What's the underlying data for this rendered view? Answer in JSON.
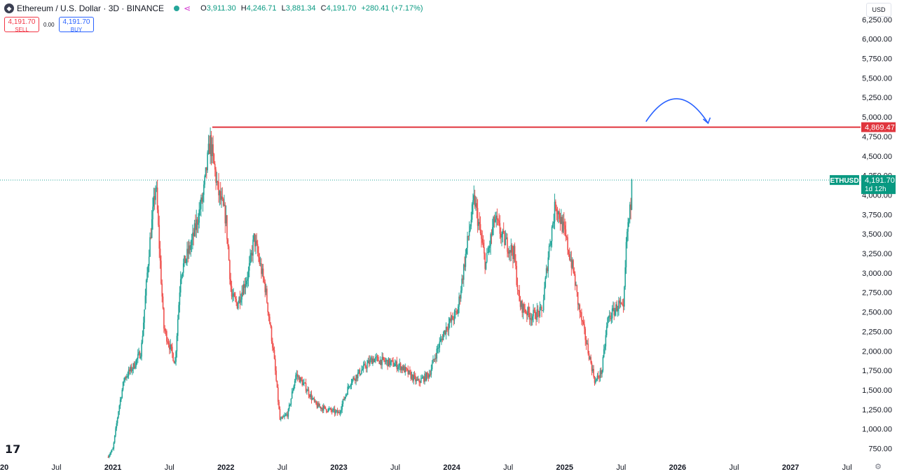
{
  "header": {
    "symbol": "Ethereum / U.S. Dollar · 3D · BINANCE",
    "open_label": "O",
    "open": "3,911.30",
    "high_label": "H",
    "high": "4,246.71",
    "low_label": "L",
    "low": "3,881.34",
    "close_label": "C",
    "close": "4,191.70",
    "change": "+280.41 (+7.17%)"
  },
  "trade": {
    "sell_price": "4,191.70",
    "sell_label": "SELL",
    "spread": "0.00",
    "buy_price": "4,191.70",
    "buy_label": "BUY"
  },
  "currency": "USD",
  "colors": {
    "up": "#26a69a",
    "down": "#ef5350",
    "resistance": "#e0353d",
    "accent": "#2962ff"
  },
  "chart_data": {
    "type": "candlestick",
    "symbol": "ETHUSD",
    "interval": "3D",
    "y_range": [
      620,
      6500
    ],
    "y_ticks": [
      750,
      1000,
      1250,
      1500,
      1750,
      2000,
      2250,
      2500,
      2750,
      3000,
      3250,
      3500,
      3750,
      4000,
      4250,
      4500,
      4750,
      5000,
      5250,
      5500,
      5750,
      6000,
      6250
    ],
    "x_labels": [
      {
        "label": "2020",
        "t": 2020.0
      },
      {
        "label": "Jul",
        "t": 2020.5
      },
      {
        "label": "2021",
        "t": 2021.0
      },
      {
        "label": "Jul",
        "t": 2021.5
      },
      {
        "label": "2022",
        "t": 2022.0
      },
      {
        "label": "Jul",
        "t": 2022.5
      },
      {
        "label": "2023",
        "t": 2023.0
      },
      {
        "label": "Jul",
        "t": 2023.5
      },
      {
        "label": "2024",
        "t": 2024.0
      },
      {
        "label": "Jul",
        "t": 2024.5
      },
      {
        "label": "2025",
        "t": 2025.0
      },
      {
        "label": "Jul",
        "t": 2025.5
      },
      {
        "label": "2026",
        "t": 2026.0
      },
      {
        "label": "Jul",
        "t": 2026.5
      },
      {
        "label": "2027",
        "t": 2027.0
      },
      {
        "label": "Jul",
        "t": 2027.5
      }
    ],
    "anchors": [
      [
        2020.95,
        640
      ],
      [
        2021.0,
        740
      ],
      [
        2021.05,
        1250
      ],
      [
        2021.1,
        1650
      ],
      [
        2021.18,
        1800
      ],
      [
        2021.25,
        2000
      ],
      [
        2021.32,
        3300
      ],
      [
        2021.38,
        4150
      ],
      [
        2021.45,
        2300
      ],
      [
        2021.55,
        1850
      ],
      [
        2021.6,
        3000
      ],
      [
        2021.7,
        3400
      ],
      [
        2021.8,
        4000
      ],
      [
        2021.86,
        4700
      ],
      [
        2021.93,
        4050
      ],
      [
        2022.0,
        3700
      ],
      [
        2022.05,
        2700
      ],
      [
        2022.1,
        2600
      ],
      [
        2022.2,
        3000
      ],
      [
        2022.25,
        3450
      ],
      [
        2022.35,
        2800
      ],
      [
        2022.42,
        2000
      ],
      [
        2022.48,
        1100
      ],
      [
        2022.55,
        1200
      ],
      [
        2022.62,
        1700
      ],
      [
        2022.7,
        1550
      ],
      [
        2022.8,
        1300
      ],
      [
        2022.9,
        1250
      ],
      [
        2023.0,
        1200
      ],
      [
        2023.1,
        1600
      ],
      [
        2023.2,
        1750
      ],
      [
        2023.3,
        1900
      ],
      [
        2023.45,
        1850
      ],
      [
        2023.55,
        1800
      ],
      [
        2023.7,
        1600
      ],
      [
        2023.8,
        1700
      ],
      [
        2023.88,
        2050
      ],
      [
        2023.95,
        2300
      ],
      [
        2024.05,
        2500
      ],
      [
        2024.15,
        3500
      ],
      [
        2024.2,
        3950
      ],
      [
        2024.3,
        3100
      ],
      [
        2024.38,
        3700
      ],
      [
        2024.45,
        3450
      ],
      [
        2024.55,
        3250
      ],
      [
        2024.6,
        2600
      ],
      [
        2024.7,
        2450
      ],
      [
        2024.8,
        2500
      ],
      [
        2024.86,
        3300
      ],
      [
        2024.92,
        3900
      ],
      [
        2025.0,
        3500
      ],
      [
        2025.08,
        3000
      ],
      [
        2025.12,
        2600
      ],
      [
        2025.2,
        2050
      ],
      [
        2025.27,
        1600
      ],
      [
        2025.33,
        1750
      ],
      [
        2025.38,
        2400
      ],
      [
        2025.48,
        2600
      ],
      [
        2025.52,
        2500
      ],
      [
        2025.55,
        3500
      ],
      [
        2025.58,
        3800
      ],
      [
        2025.6,
        4191.7
      ]
    ],
    "last_price": 4191.7,
    "last_price_label": "4,191.70",
    "last_countdown": "1d 12h",
    "last_symbol_tag": "ETHUSD",
    "resistance_level": 4869.47,
    "resistance_label": "4,869.47",
    "resistance_from_t": 2021.88,
    "projection_arrow": {
      "t_start": 2025.72,
      "t_end": 2026.27,
      "peak": 5250,
      "end": 4920
    }
  }
}
